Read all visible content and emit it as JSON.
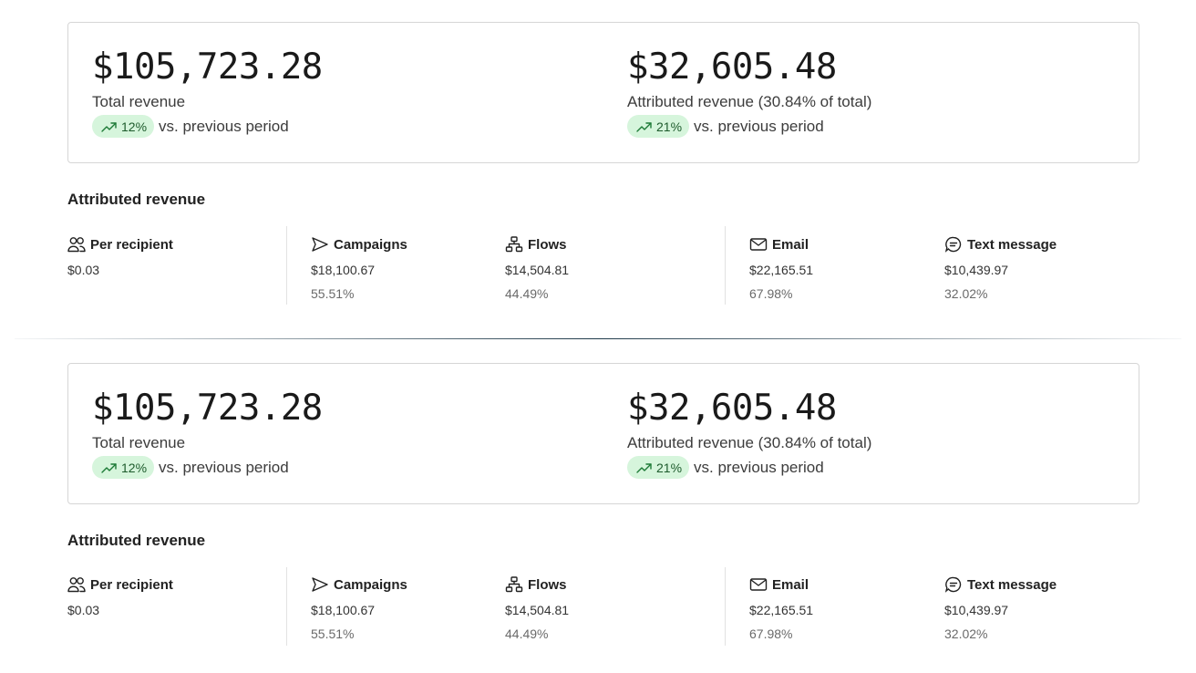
{
  "sections": [
    {
      "total": {
        "value": "$105,723.28",
        "label": "Total revenue",
        "trend_pct": "12%",
        "trend_text": "vs. previous period"
      },
      "attributed": {
        "value": "$32,605.48",
        "label": "Attributed revenue (30.84% of total)",
        "trend_pct": "21%",
        "trend_text": "vs. previous period"
      },
      "subheading": "Attributed revenue",
      "stats": {
        "per_recipient": {
          "label": "Per recipient",
          "value": "$0.03",
          "icon": "users-icon"
        },
        "campaigns": {
          "label": "Campaigns",
          "value": "$18,100.67",
          "pct": "55.51%",
          "icon": "send-icon"
        },
        "flows": {
          "label": "Flows",
          "value": "$14,504.81",
          "pct": "44.49%",
          "icon": "flow-icon"
        },
        "email": {
          "label": "Email",
          "value": "$22,165.51",
          "pct": "67.98%",
          "icon": "envelope-icon"
        },
        "text_message": {
          "label": "Text message",
          "value": "$10,439.97",
          "pct": "32.02%",
          "icon": "message-icon"
        }
      }
    },
    {
      "total": {
        "value": "$105,723.28",
        "label": "Total revenue",
        "trend_pct": "12%",
        "trend_text": "vs. previous period"
      },
      "attributed": {
        "value": "$32,605.48",
        "label": "Attributed revenue (30.84% of total)",
        "trend_pct": "21%",
        "trend_text": "vs. previous period"
      },
      "subheading": "Attributed revenue",
      "stats": {
        "per_recipient": {
          "label": "Per recipient",
          "value": "$0.03",
          "icon": "users-icon"
        },
        "campaigns": {
          "label": "Campaigns",
          "value": "$18,100.67",
          "pct": "55.51%",
          "icon": "send-icon"
        },
        "flows": {
          "label": "Flows",
          "value": "$14,504.81",
          "pct": "44.49%",
          "icon": "flow-icon"
        },
        "email": {
          "label": "Email",
          "value": "$22,165.51",
          "pct": "67.98%",
          "icon": "envelope-icon"
        },
        "text_message": {
          "label": "Text message",
          "value": "$10,439.97",
          "pct": "32.02%",
          "icon": "message-icon"
        }
      }
    }
  ],
  "colors": {
    "trend_pill_bg": "#d6f5dc",
    "trend_pill_text": "#1d5b2c",
    "card_border": "#d6d6d6"
  }
}
